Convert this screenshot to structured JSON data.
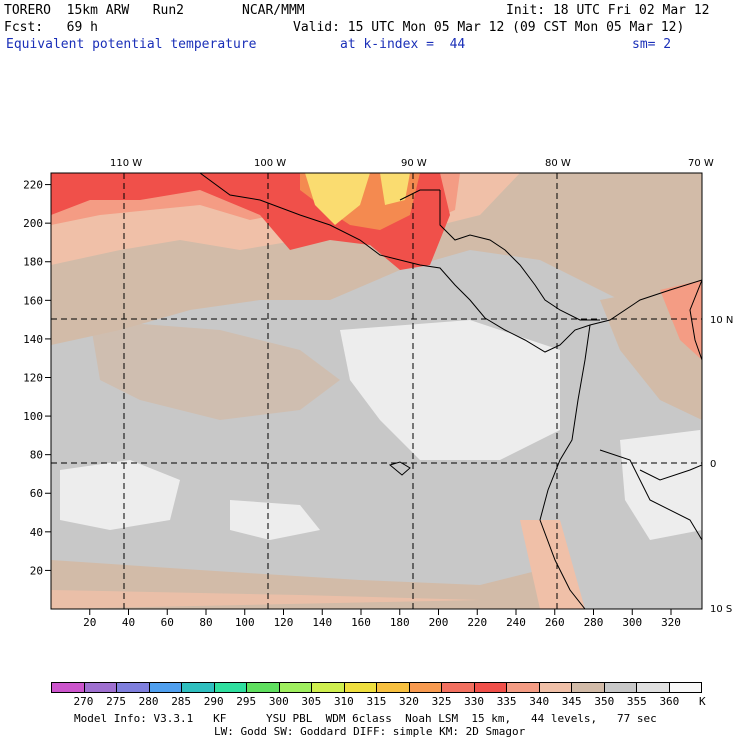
{
  "header": {
    "model": "TORERO  15km ARW   Run2",
    "center": "NCAR/MMM",
    "init": "Init: 18 UTC Fri 02 Mar 12",
    "fcst": "Fcst:   69 h",
    "valid": "Valid: 15 UTC Mon 05 Mar 12 (09 CST Mon 05 Mar 12)",
    "field": "Equivalent potential temperature",
    "level": "at k-index =  44",
    "smoothing": "sm= 2"
  },
  "map": {
    "lon_labels": [
      "110 W",
      "100 W",
      "90 W",
      "80 W",
      "70 W"
    ],
    "lat_labels": [
      "10 N",
      "0",
      "10 S"
    ],
    "x_ticks": [
      "20",
      "40",
      "60",
      "80",
      "100",
      "120",
      "140",
      "160",
      "180",
      "200",
      "220",
      "240",
      "260",
      "280",
      "300",
      "320"
    ],
    "y_ticks": [
      "220",
      "200",
      "180",
      "160",
      "140",
      "120",
      "100",
      "80",
      "60",
      "40",
      "20"
    ],
    "colors": {
      "very_low": "#f0f0f0",
      "low": "#c8c8c8",
      "tan": "#d2bba8",
      "peach": "#f0c0a8",
      "salmon": "#f49c84",
      "orange_red": "#f07060",
      "red": "#f0504a",
      "orange": "#f48a50",
      "yellow": "#fadc70",
      "coast": "#000000",
      "grid": "#000000"
    }
  },
  "legend": {
    "unit": "K",
    "values": [
      "270",
      "275",
      "280",
      "285",
      "290",
      "295",
      "300",
      "305",
      "310",
      "315",
      "320",
      "325",
      "330",
      "335",
      "340",
      "345",
      "350",
      "355",
      "360"
    ],
    "colors": [
      "#cc55cc",
      "#9f70d0",
      "#7f7fdd",
      "#4f9fef",
      "#2fbfbf",
      "#2fdf9f",
      "#5fdf5f",
      "#9fef5f",
      "#cfef4f",
      "#efdf3f",
      "#f7c040",
      "#f79a50",
      "#f27060",
      "#f0504a",
      "#f49c84",
      "#f0c0a8",
      "#d2bba8",
      "#c8c8c8",
      "#e0e0e0",
      "#f8f8f8"
    ]
  },
  "footer": {
    "line1": "Model Info: V3.3.1   KF      YSU PBL  WDM 6class  Noah LSM  15 km,   44 levels,   77 sec",
    "line2": "LW: Godd SW: Goddard DIFF: simple KM: 2D Smagor"
  }
}
